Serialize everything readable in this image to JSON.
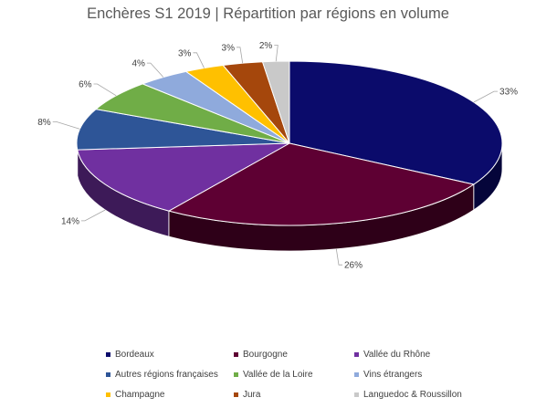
{
  "chart_data": {
    "type": "pie",
    "title": "Enchères S1 2019 | Répartition par régions en volume",
    "slices": [
      {
        "label": "Bordeaux",
        "value": 33,
        "display": "33%",
        "color": "#0b0b6b",
        "side": "#05053a"
      },
      {
        "label": "Bourgogne",
        "value": 26,
        "display": "26%",
        "color": "#5e0033",
        "side": "#2e0018"
      },
      {
        "label": "Vallée du Rhône",
        "value": 14,
        "display": "14%",
        "color": "#7030a0",
        "side": "#3d1a58"
      },
      {
        "label": "Autres régions françaises",
        "value": 8,
        "display": "8%",
        "color": "#2e5597",
        "side": "#1a3158"
      },
      {
        "label": "Vallée de la Loire",
        "value": 6,
        "display": "6%",
        "color": "#70ad47",
        "side": "#3f6428"
      },
      {
        "label": "Vins étrangers",
        "value": 4,
        "display": "4%",
        "color": "#8faadc",
        "side": "#5a6d8f"
      },
      {
        "label": "Champagne",
        "value": 3,
        "display": "3%",
        "color": "#ffc000",
        "side": "#a67c00"
      },
      {
        "label": "Jura",
        "value": 3,
        "display": "3%",
        "color": "#a5470c",
        "side": "#5c2706"
      },
      {
        "label": "Languedoc & Roussillon",
        "value": 2,
        "display": "2%",
        "color": "#c9c9c9",
        "side": "#8a8a8a"
      }
    ],
    "legend_position": "bottom"
  }
}
